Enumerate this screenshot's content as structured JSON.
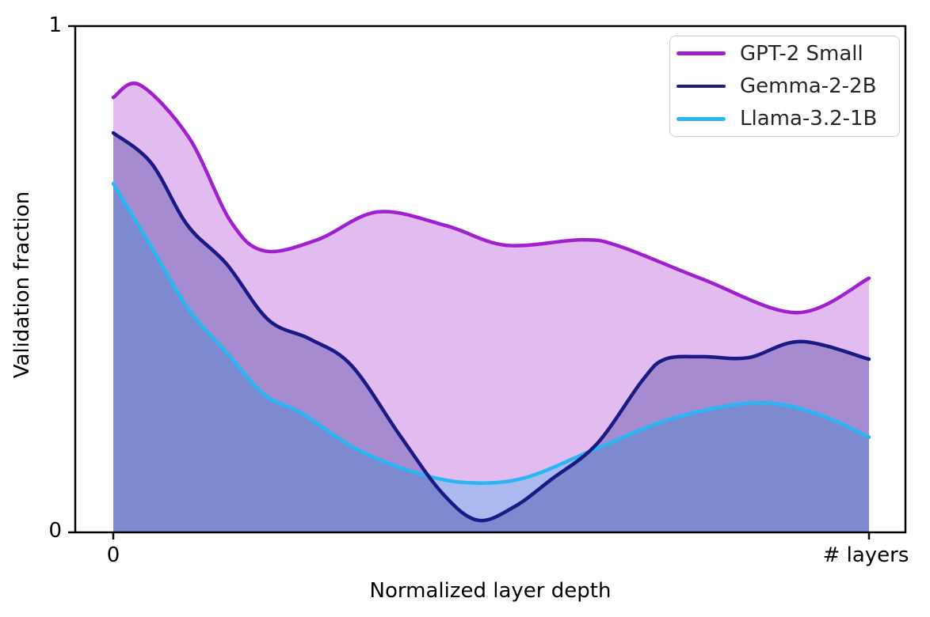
{
  "chart_data": {
    "type": "area",
    "title": "",
    "xlabel": "Normalized layer depth",
    "ylabel": "Validation fraction",
    "xlim": [
      0,
      1
    ],
    "ylim": [
      0,
      1
    ],
    "grid": false,
    "legend_position": "upper right",
    "fill_opacity": 0.3,
    "background_color": "#ffffff",
    "axis_color": "#000000",
    "xticks": [
      {
        "pos": 0.0,
        "label": "0"
      },
      {
        "pos": 1.0,
        "label": "# layers"
      }
    ],
    "yticks": [
      {
        "value": 0,
        "label": "0"
      },
      {
        "value": 1,
        "label": "1"
      }
    ],
    "series": [
      {
        "name": "GPT-2 Small",
        "color": "#a020d0",
        "points": [
          [
            0,
            0.859
          ],
          [
            0.035,
            0.884
          ],
          [
            0.1,
            0.78
          ],
          [
            0.155,
            0.615
          ],
          [
            0.2,
            0.556
          ],
          [
            0.27,
            0.578
          ],
          [
            0.35,
            0.633
          ],
          [
            0.44,
            0.606
          ],
          [
            0.52,
            0.567
          ],
          [
            0.62,
            0.578
          ],
          [
            0.67,
            0.565
          ],
          [
            0.78,
            0.5
          ],
          [
            0.905,
            0.434
          ],
          [
            1,
            0.502
          ]
        ]
      },
      {
        "name": "Gemma-2-2B",
        "color": "#1a1a85",
        "points": [
          [
            0,
            0.789
          ],
          [
            0.05,
            0.73
          ],
          [
            0.098,
            0.607
          ],
          [
            0.15,
            0.53
          ],
          [
            0.205,
            0.42
          ],
          [
            0.26,
            0.382
          ],
          [
            0.315,
            0.33
          ],
          [
            0.38,
            0.19
          ],
          [
            0.435,
            0.078
          ],
          [
            0.482,
            0.024
          ],
          [
            0.53,
            0.05
          ],
          [
            0.58,
            0.105
          ],
          [
            0.64,
            0.175
          ],
          [
            0.7,
            0.3
          ],
          [
            0.73,
            0.342
          ],
          [
            0.78,
            0.347
          ],
          [
            0.84,
            0.345
          ],
          [
            0.91,
            0.377
          ],
          [
            1,
            0.342
          ]
        ]
      },
      {
        "name": "Llama-3.2-1B",
        "color": "#29b6f2",
        "points": [
          [
            0,
            0.689
          ],
          [
            0.05,
            0.565
          ],
          [
            0.1,
            0.44
          ],
          [
            0.15,
            0.355
          ],
          [
            0.2,
            0.272
          ],
          [
            0.25,
            0.235
          ],
          [
            0.32,
            0.166
          ],
          [
            0.4,
            0.118
          ],
          [
            0.47,
            0.098
          ],
          [
            0.545,
            0.108
          ],
          [
            0.64,
            0.166
          ],
          [
            0.74,
            0.225
          ],
          [
            0.85,
            0.256
          ],
          [
            0.93,
            0.235
          ],
          [
            1,
            0.188
          ]
        ]
      }
    ],
    "draw_order": [
      0,
      2,
      1
    ]
  }
}
